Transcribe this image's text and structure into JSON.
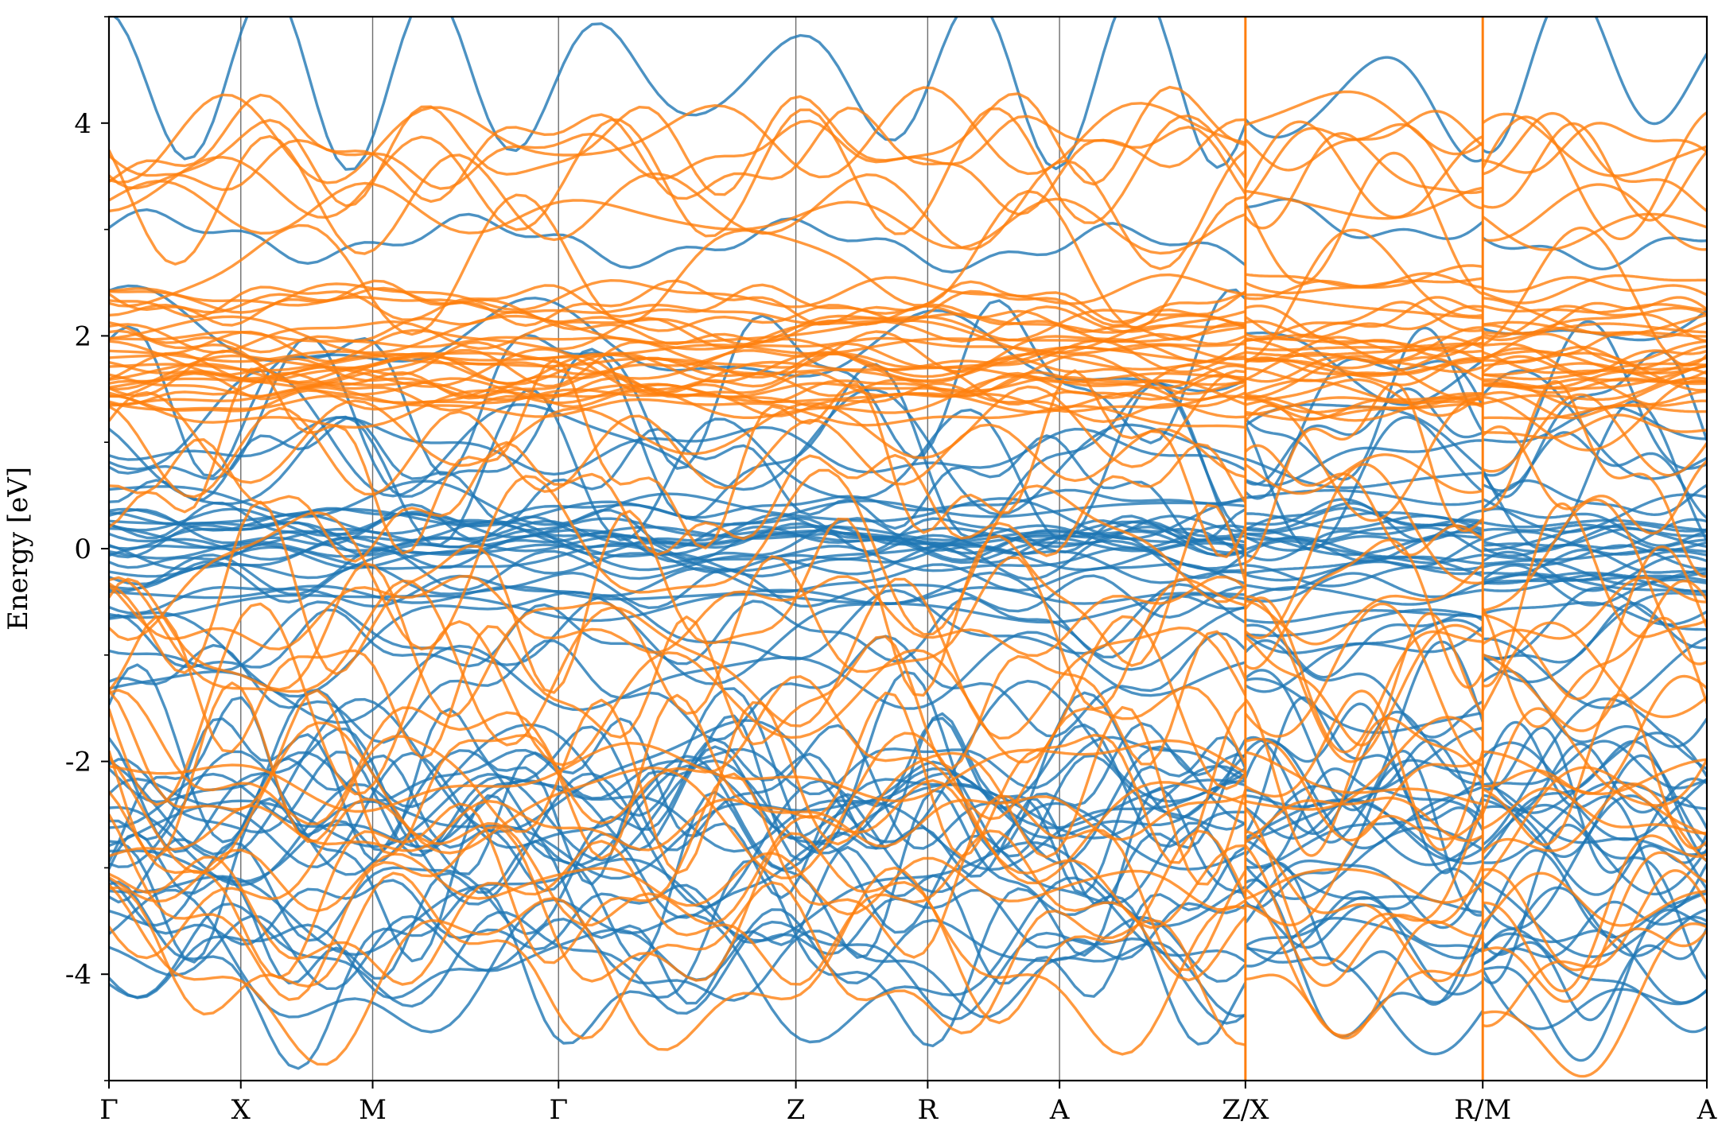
{
  "chart_data": {
    "type": "line",
    "title": "",
    "xlabel": "",
    "ylabel": "Energy [eV]",
    "ylim": [
      -5,
      5
    ],
    "yticks": [
      -4,
      -2,
      0,
      2,
      4
    ],
    "yminor": [
      -5,
      -3,
      -1,
      1,
      3,
      5
    ],
    "xlim": [
      0,
      12.12
    ],
    "kpoints": [
      {
        "label": "Γ",
        "x": 0.0
      },
      {
        "label": "X",
        "x": 1.0
      },
      {
        "label": "M",
        "x": 2.0
      },
      {
        "label": "Γ",
        "x": 3.41
      },
      {
        "label": "Z",
        "x": 5.21
      },
      {
        "label": "R",
        "x": 6.21
      },
      {
        "label": "A",
        "x": 7.21
      },
      {
        "label": "Z/X",
        "x": 8.62
      },
      {
        "label": "R/M",
        "x": 10.42
      },
      {
        "label": "A",
        "x": 12.12
      }
    ],
    "segment_breaks": [
      8.62,
      10.42
    ],
    "grid": "vertical lines at high-symmetry points",
    "series": [
      {
        "color": "#1f77b4",
        "band_count": 60
      },
      {
        "color": "#ff7f0e",
        "band_count": 60
      }
    ]
  }
}
